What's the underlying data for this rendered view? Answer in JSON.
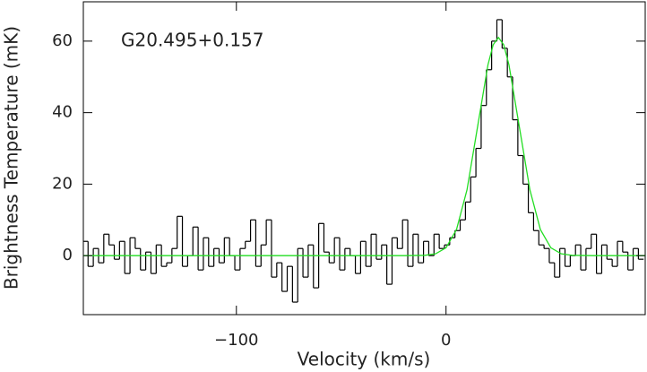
{
  "chart_data": {
    "type": "line",
    "annotation": "G20.495+0.157",
    "x_label": "Velocity (km/s)",
    "y_label": "Brightness Temperature (mK)",
    "xlim": [
      -173,
      95
    ],
    "ylim": [
      -16.5,
      71
    ],
    "xticks": [
      {
        "value": -100,
        "label": "−100"
      },
      0
    ],
    "yticks": [
      0,
      20,
      40,
      60
    ],
    "series": [
      {
        "style": "step",
        "color": "#000000",
        "x": [
          -172,
          -169.5,
          -167,
          -164.5,
          -162,
          -159.5,
          -157,
          -154.5,
          -152,
          -149.5,
          -147,
          -144.5,
          -142,
          -139.5,
          -137,
          -134.5,
          -132,
          -129.5,
          -127,
          -124.5,
          -122,
          -119.5,
          -117,
          -114.5,
          -112,
          -109.5,
          -107,
          -104.5,
          -102,
          -99.5,
          -97,
          -94.5,
          -92,
          -89.5,
          -87,
          -84.5,
          -82,
          -79.5,
          -77,
          -74.5,
          -72,
          -69.5,
          -67,
          -64.5,
          -62,
          -59.5,
          -57,
          -54.5,
          -52,
          -49.5,
          -47,
          -44.5,
          -42,
          -39.5,
          -37,
          -34.5,
          -32,
          -29.5,
          -27,
          -24.5,
          -22,
          -19.5,
          -17,
          -14.5,
          -12,
          -9.5,
          -7,
          -4.5,
          -2,
          0.5,
          3,
          5.5,
          8,
          10.5,
          13,
          15.5,
          18,
          20.5,
          23,
          25.5,
          28,
          30.5,
          33,
          35.5,
          38,
          40.5,
          43,
          45.5,
          48,
          50.5,
          53,
          55.5,
          58,
          60.5,
          63,
          65.5,
          68,
          70.5,
          73,
          75.5,
          78,
          80.5,
          83,
          85.5,
          88,
          90.5,
          93
        ],
        "values": [
          4,
          -3,
          2,
          -2,
          6,
          3,
          -1,
          4,
          -5,
          5,
          2,
          -4,
          1,
          -5,
          3,
          -3,
          -2,
          2,
          11,
          -3,
          0,
          8,
          -4,
          5,
          -3,
          2,
          -2,
          5,
          0,
          -4,
          2,
          4,
          10,
          -3,
          3,
          10,
          -6,
          -2,
          -10,
          -3,
          -13,
          2,
          -6,
          3,
          -9,
          9,
          1,
          -2,
          5,
          -4,
          2,
          0,
          -5,
          4,
          -3,
          6,
          -1,
          3,
          -8,
          5,
          2,
          10,
          -3,
          6,
          -2,
          4,
          0,
          6,
          2,
          3,
          5,
          7,
          10,
          15,
          22,
          30,
          42,
          52,
          60,
          66,
          58,
          50,
          38,
          28,
          20,
          12,
          7,
          3,
          2,
          -2,
          -6,
          2,
          -3,
          0,
          3,
          -4,
          2,
          6,
          -5,
          3,
          -1,
          -3,
          4,
          1,
          -4,
          2,
          -1
        ]
      },
      {
        "style": "line",
        "color": "#22dd22",
        "x": [
          -173,
          -100,
          -50,
          -20,
          -10,
          -5,
          0,
          5,
          10,
          15,
          20,
          22.5,
          25,
          27.5,
          30,
          35,
          40,
          45,
          50,
          55,
          60,
          70,
          95
        ],
        "values": [
          0,
          0,
          0,
          0,
          0.09,
          0.51,
          2.2,
          7.3,
          18.4,
          35.9,
          53.4,
          59,
          61,
          59,
          53.4,
          35.9,
          18.4,
          7.3,
          2.2,
          0.51,
          0.09,
          0,
          0
        ]
      }
    ]
  }
}
